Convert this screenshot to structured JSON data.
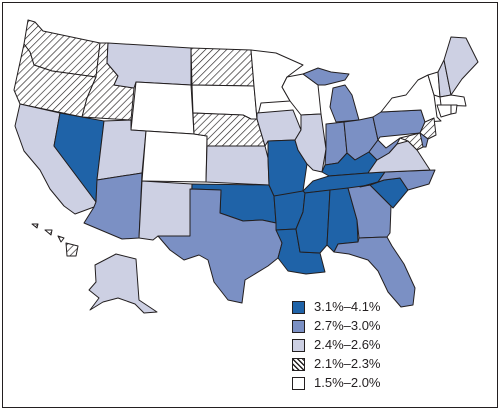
{
  "legend": {
    "items": [
      {
        "label": "3.1%–4.1%",
        "color": "#1f63a8",
        "pattern": "solid"
      },
      {
        "label": "2.7%–3.0%",
        "color": "#7b90c4",
        "pattern": "solid"
      },
      {
        "label": "2.4%–2.6%",
        "color": "#cdd0e3",
        "pattern": "solid"
      },
      {
        "label": "2.1%–2.3%",
        "color": "#ffffff",
        "pattern": "hatch"
      },
      {
        "label": "1.5%–2.0%",
        "color": "#ffffff",
        "pattern": "solid"
      }
    ]
  }
}
